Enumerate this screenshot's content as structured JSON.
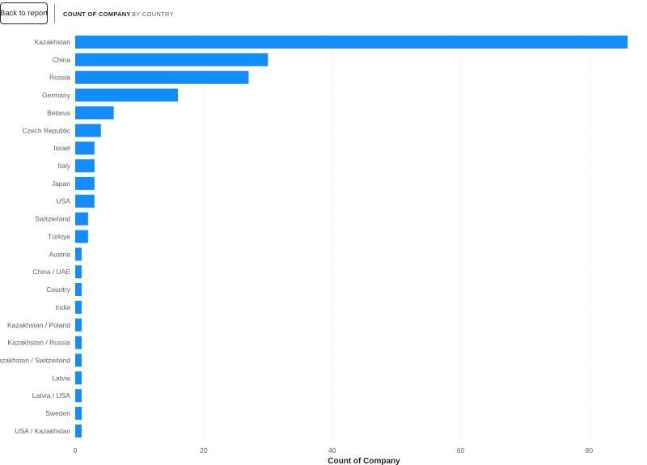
{
  "toolbar": {
    "back_label": "Back to report",
    "crumb_measure": "COUNT OF COMPANY",
    "crumb_dimension": "BY COUNTRY"
  },
  "colors": {
    "bar": "#118DFF",
    "gridline": "#E6E6E6"
  },
  "chart_data": {
    "type": "bar",
    "orientation": "horizontal",
    "categories": [
      "Kazakhstan",
      "China",
      "Russia",
      "Germany",
      "Belarus",
      "Czech Republic",
      "Israel",
      "Italy",
      "Japan",
      "USA",
      "Switzerland",
      "Türkiye",
      "Austria",
      "China / UAE",
      "Country",
      "India",
      "Kazakhstan / Poland",
      "Kazakhstan / Russia",
      "Kazakhstan / Switzerland",
      "Latvia",
      "Latvia / USA",
      "Sweden",
      "USA / Kazakhstan"
    ],
    "values": [
      86,
      30,
      27,
      16,
      6,
      4,
      3,
      3,
      3,
      3,
      2,
      2,
      1,
      1,
      1,
      1,
      1,
      1,
      1,
      1,
      1,
      1,
      1
    ],
    "xlabel": "Count of Company",
    "ylabel": "",
    "xlim": [
      0,
      86
    ],
    "xticks": [
      0,
      20,
      40,
      60,
      80
    ],
    "grid": "vertical dotted"
  }
}
